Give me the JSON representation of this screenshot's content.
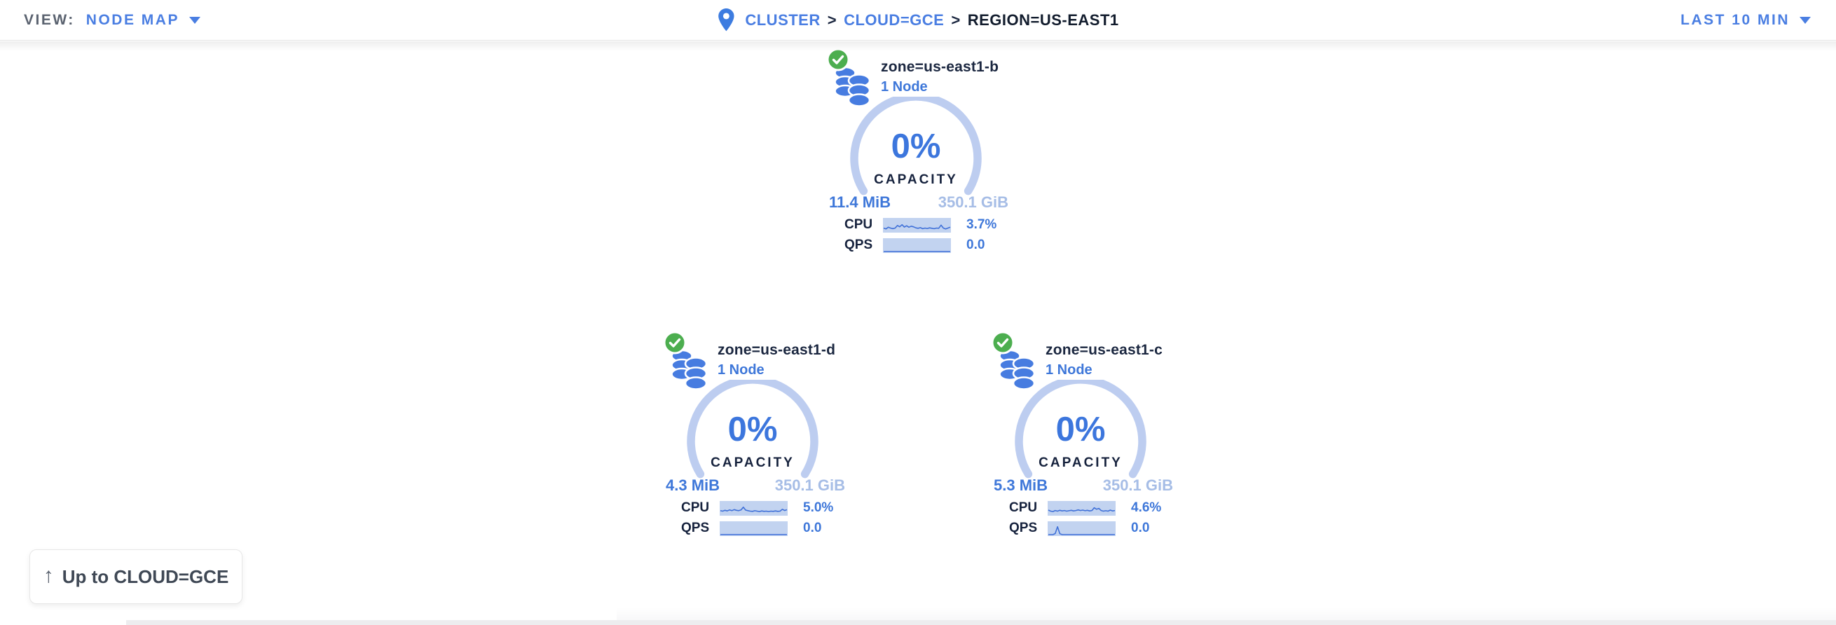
{
  "header": {
    "view_label": "VIEW:",
    "view_value": "NODE MAP",
    "time_range": "LAST 10 MIN",
    "breadcrumb": {
      "separator": ">",
      "items": [
        {
          "label": "CLUSTER"
        },
        {
          "label": "CLOUD=GCE"
        },
        {
          "label": "REGION=US-EAST1"
        }
      ]
    }
  },
  "back_button": {
    "label": "Up to CLOUD=GCE",
    "arrow": "↑"
  },
  "zones": [
    {
      "name": "zone=us-east1-b",
      "node_count": "1 Node",
      "status": "healthy",
      "capacity_pct": "0%",
      "capacity_label": "CAPACITY",
      "capacity_used": "11.4 MiB",
      "capacity_total": "350.1 GiB",
      "cpu_label": "CPU",
      "cpu_value": "3.7%",
      "qps_label": "QPS",
      "qps_value": "0.0"
    },
    {
      "name": "zone=us-east1-d",
      "node_count": "1 Node",
      "status": "healthy",
      "capacity_pct": "0%",
      "capacity_label": "CAPACITY",
      "capacity_used": "4.3 MiB",
      "capacity_total": "350.1 GiB",
      "cpu_label": "CPU",
      "cpu_value": "5.0%",
      "qps_label": "QPS",
      "qps_value": "0.0"
    },
    {
      "name": "zone=us-east1-c",
      "node_count": "1 Node",
      "status": "healthy",
      "capacity_pct": "0%",
      "capacity_label": "CAPACITY",
      "capacity_used": "5.3 MiB",
      "capacity_total": "350.1 GiB",
      "cpu_label": "CPU",
      "cpu_value": "4.6%",
      "qps_label": "QPS",
      "qps_value": "0.0"
    }
  ],
  "chart_data": {
    "type": "sparkline",
    "note": "per-zone 10-min CPU and QPS mini charts, values normalized 0-1",
    "zones": [
      {
        "name": "zone=us-east1-b",
        "cpu": [
          0.3,
          0.22,
          0.38,
          0.3,
          0.25,
          0.3,
          0.55,
          0.42,
          0.62,
          0.4,
          0.52,
          0.38,
          0.48,
          0.42,
          0.32,
          0.28,
          0.34,
          0.24,
          0.3,
          0.26,
          0.32,
          0.28,
          0.24,
          0.3,
          0.28,
          0.58,
          0.3,
          0.22,
          0.3,
          0.38
        ],
        "qps": [
          0,
          0,
          0,
          0,
          0,
          0,
          0,
          0,
          0,
          0,
          0,
          0,
          0,
          0,
          0,
          0,
          0,
          0,
          0,
          0,
          0,
          0,
          0,
          0,
          0,
          0,
          0,
          0,
          0,
          0
        ]
      },
      {
        "name": "zone=us-east1-d",
        "cpu": [
          0.35,
          0.3,
          0.38,
          0.32,
          0.42,
          0.35,
          0.45,
          0.38,
          0.35,
          0.42,
          0.68,
          0.4,
          0.35,
          0.3,
          0.28,
          0.34,
          0.3,
          0.26,
          0.32,
          0.28,
          0.3,
          0.26,
          0.3,
          0.28,
          0.32,
          0.28,
          0.3,
          0.48,
          0.36,
          0.44
        ],
        "qps": [
          0,
          0,
          0,
          0,
          0,
          0,
          0,
          0,
          0,
          0,
          0,
          0,
          0,
          0,
          0,
          0,
          0,
          0,
          0,
          0,
          0,
          0,
          0,
          0,
          0,
          0,
          0,
          0,
          0,
          0
        ]
      },
      {
        "name": "zone=us-east1-c",
        "cpu": [
          0.4,
          0.3,
          0.26,
          0.36,
          0.3,
          0.38,
          0.32,
          0.36,
          0.3,
          0.34,
          0.38,
          0.32,
          0.36,
          0.42,
          0.36,
          0.4,
          0.34,
          0.38,
          0.32,
          0.36,
          0.62,
          0.48,
          0.56,
          0.36,
          0.3,
          0.34,
          0.3,
          0.4,
          0.32,
          0.36
        ],
        "qps": [
          0,
          0,
          0,
          0.1,
          0.75,
          0.08,
          0,
          0,
          0,
          0,
          0,
          0,
          0,
          0,
          0,
          0,
          0,
          0,
          0,
          0,
          0,
          0,
          0,
          0,
          0,
          0,
          0,
          0,
          0,
          0
        ]
      }
    ]
  },
  "colors": {
    "link_blue": "#4a7ee2",
    "value_blue": "#3e77d9",
    "pct_blue": "#3c76dd",
    "light_blue": "#a6bde6",
    "arc_blue": "#bdcdf0",
    "spark_bg": "#c2d3f0",
    "spark_line": "#3f70d8",
    "dark_navy": "#16223d",
    "healthy_green": "#4cae4f"
  }
}
